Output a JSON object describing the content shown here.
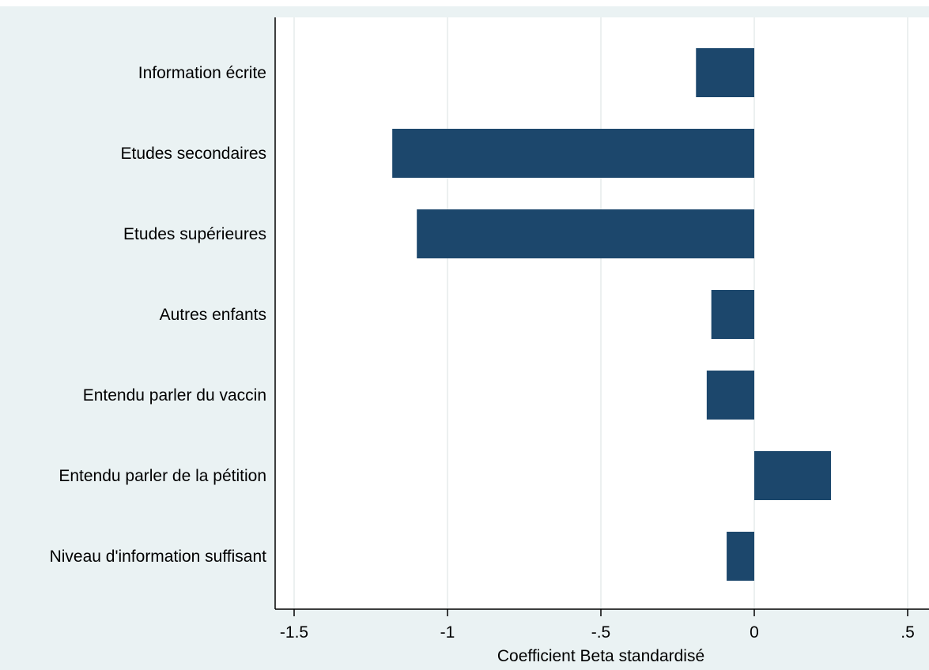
{
  "chart_data": {
    "type": "bar",
    "orientation": "horizontal",
    "categories": [
      "Information écrite",
      "Etudes secondaires",
      "Etudes supérieures",
      "Autres enfants",
      "Entendu parler du vaccin",
      "Entendu parler de la pétition",
      "Niveau d'information suffisant"
    ],
    "values": [
      -0.19,
      -1.18,
      -1.1,
      -0.14,
      -0.155,
      0.25,
      -0.09
    ],
    "xlabel": "Coefficient Beta standardisé",
    "ylabel": "",
    "xlim": [
      -1.5,
      0.5
    ],
    "xticks": [
      -1.5,
      -1,
      -0.5,
      0,
      0.5
    ],
    "xtick_labels": [
      "-1.5",
      "-1",
      "-.5",
      "0",
      ".5"
    ],
    "grid": "vertical",
    "bar_color": "#1c476c",
    "background_color": "#eaf2f3",
    "plot_background_color": "#ffffff"
  }
}
